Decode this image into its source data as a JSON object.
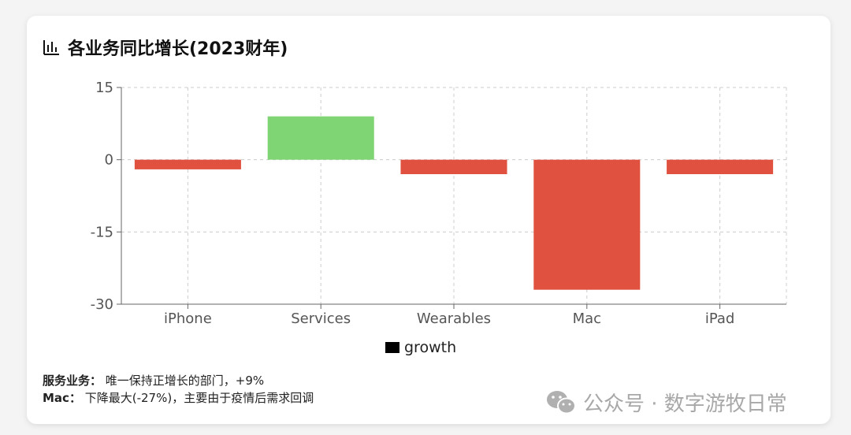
{
  "header": {
    "icon": "bar-chart-icon",
    "title": "各业务同比增长(2023财年)"
  },
  "chart_data": {
    "type": "bar",
    "categories": [
      "iPhone",
      "Services",
      "Wearables",
      "Mac",
      "iPad"
    ],
    "series": [
      {
        "name": "growth",
        "values": [
          -2,
          9,
          -3,
          -27,
          -3
        ]
      }
    ],
    "ylim": [
      -30,
      15
    ],
    "yticks": [
      15,
      0,
      -15,
      -30
    ],
    "grid": true,
    "legend_position": "bottom-center",
    "colors": {
      "positive": "#7fd474",
      "negative": "#e0513f",
      "legend": "#000000",
      "grid": "#cccccc",
      "axis": "#666666"
    }
  },
  "notes": [
    {
      "key": "服务业务：",
      "text": "唯一保持正增长的部门，+9%"
    },
    {
      "key": "Mac：",
      "text": "下降最大(-27%)，主要由于疫情后需求回调"
    }
  ],
  "watermark": {
    "icon": "wechat-icon",
    "text": "公众号 · 数字游牧日常"
  }
}
